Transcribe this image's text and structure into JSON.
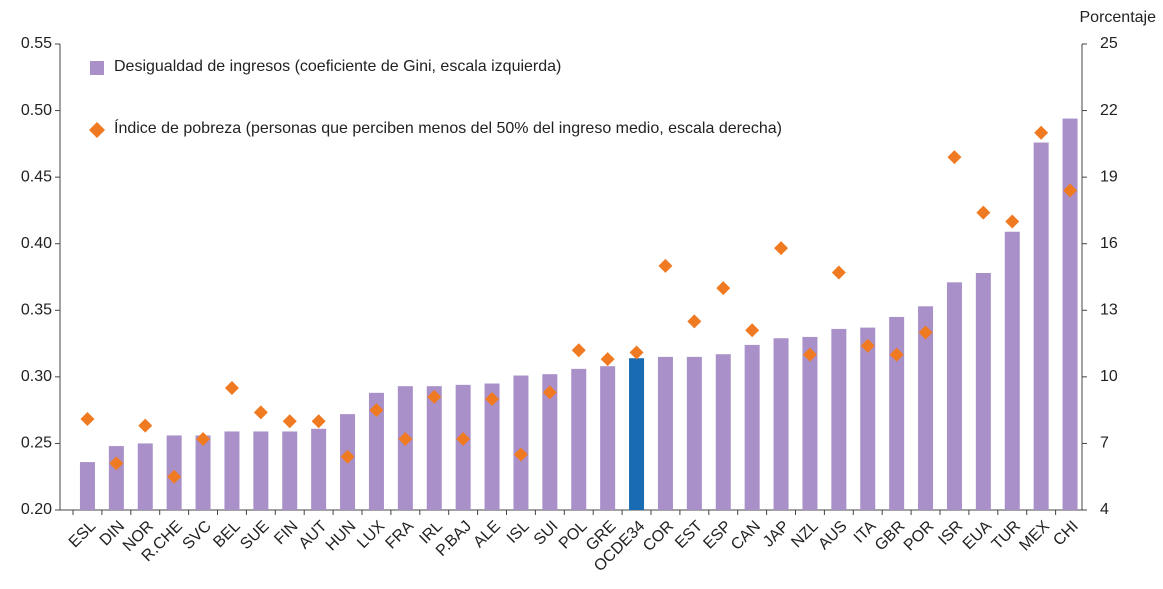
{
  "chart_data": {
    "type": "bar",
    "y2_label": "Porcentaje",
    "categories": [
      "ESL",
      "DIN",
      "NOR",
      "R.CHE",
      "SVC",
      "BEL",
      "SUE",
      "FIN",
      "AUT",
      "HUN",
      "LUX",
      "FRA",
      "IRL",
      "P.BAJ",
      "ALE",
      "ISL",
      "SUI",
      "POL",
      "GRE",
      "OCDE34",
      "COR",
      "EST",
      "ESP",
      "CAN",
      "JAP",
      "NZL",
      "AUS",
      "ITA",
      "GBR",
      "POR",
      "ISR",
      "EUA",
      "TUR",
      "MEX",
      "CHI"
    ],
    "series": [
      {
        "name": "Desigualdad de ingresos (coeficiente de Gini, escala izquierda)",
        "type": "bar",
        "color": "#a990c9",
        "colors": [
          "#a990c9",
          "#a990c9",
          "#a990c9",
          "#a990c9",
          "#a990c9",
          "#a990c9",
          "#a990c9",
          "#a990c9",
          "#a990c9",
          "#a990c9",
          "#a990c9",
          "#a990c9",
          "#a990c9",
          "#a990c9",
          "#a990c9",
          "#a990c9",
          "#a990c9",
          "#a990c9",
          "#a990c9",
          "#1a6cb2",
          "#a990c9",
          "#a990c9",
          "#a990c9",
          "#a990c9",
          "#a990c9",
          "#a990c9",
          "#a990c9",
          "#a990c9",
          "#a990c9",
          "#a990c9",
          "#a990c9",
          "#a990c9",
          "#a990c9",
          "#a990c9",
          "#a990c9"
        ],
        "values": [
          0.236,
          0.248,
          0.25,
          0.256,
          0.256,
          0.259,
          0.259,
          0.259,
          0.261,
          0.272,
          0.288,
          0.293,
          0.293,
          0.294,
          0.295,
          0.301,
          0.302,
          0.306,
          0.308,
          0.314,
          0.315,
          0.315,
          0.317,
          0.324,
          0.329,
          0.33,
          0.336,
          0.337,
          0.345,
          0.353,
          0.371,
          0.378,
          0.409,
          0.476,
          0.494
        ]
      },
      {
        "name": "Índice de pobreza (personas que perciben menos del 50% del ingreso medio, escala derecha)",
        "type": "scatter",
        "axis": "y2",
        "color": "#f07a22",
        "values": [
          8.1,
          6.1,
          7.8,
          5.5,
          7.2,
          9.5,
          8.4,
          8.0,
          8.0,
          6.4,
          8.5,
          7.2,
          9.1,
          7.2,
          9.0,
          6.5,
          9.3,
          11.2,
          10.8,
          11.1,
          15.0,
          12.5,
          14.0,
          12.1,
          15.8,
          11.0,
          14.7,
          11.4,
          11.0,
          12.0,
          19.9,
          17.4,
          17.0,
          21.0,
          18.4
        ]
      }
    ],
    "ylim": [
      0.2,
      0.55
    ],
    "yticks": [
      {
        "value": 0.2,
        "label": "0.20"
      },
      {
        "value": 0.25,
        "label": "0.25"
      },
      {
        "value": 0.3,
        "label": "0.30"
      },
      {
        "value": 0.35,
        "label": "0.35"
      },
      {
        "value": 0.4,
        "label": "0.40"
      },
      {
        "value": 0.45,
        "label": "0.45"
      },
      {
        "value": 0.5,
        "label": "0.50"
      },
      {
        "value": 0.55,
        "label": "0.55"
      }
    ],
    "y2lim": [
      4,
      25
    ],
    "y2ticks": [
      4,
      7,
      10,
      13,
      16,
      19,
      22,
      25
    ],
    "legend": "upper left",
    "grid": false
  }
}
